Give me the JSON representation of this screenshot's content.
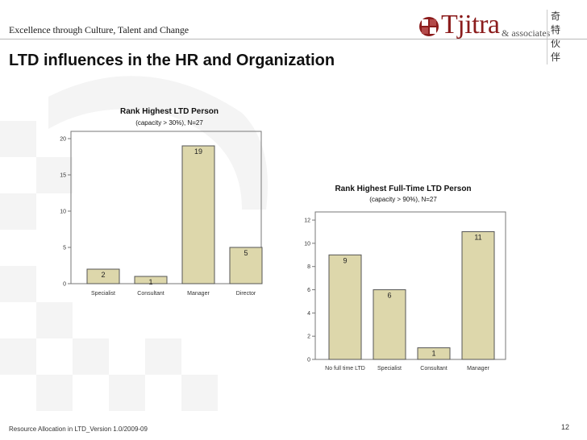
{
  "header": {
    "tagline": "Excellence through Culture, Talent and Change",
    "logo_name": "Tjitra",
    "logo_sub": "& associates",
    "logo_cjk_1": "奇 特",
    "logo_cjk_2": "伙 伴"
  },
  "page_title": "LTD influences in the HR and Organization",
  "footer": {
    "left": "Resource Allocation in LTD_Version 1.0/2009-09",
    "page_number": "12"
  },
  "colors": {
    "bar_fill": "#ddd7ab",
    "bar_stroke": "#555555",
    "brand": "#8b1c1c"
  },
  "chart_data": [
    {
      "type": "bar",
      "title": "Rank Highest LTD Person",
      "subtitle": "(capacity > 30%), N=27",
      "categories": [
        "Specialist",
        "Consultant",
        "Manager",
        "Director"
      ],
      "values": [
        2,
        1,
        19,
        5
      ],
      "data_labels": [
        "2",
        "1",
        "19",
        "5"
      ],
      "ylim": [
        0,
        21
      ],
      "yticks": [
        0,
        5,
        10,
        15,
        20
      ],
      "xlabel": "",
      "ylabel": "",
      "grid": false
    },
    {
      "type": "bar",
      "title": "Rank Highest Full-Time LTD Person",
      "subtitle": "(capacity > 90%), N=27",
      "categories": [
        "No full time LTD",
        "Specialist",
        "Consultant",
        "Manager"
      ],
      "values": [
        9,
        6,
        1,
        11
      ],
      "data_labels": [
        "9",
        "6",
        "1",
        "11"
      ],
      "ylim": [
        0,
        12.7
      ],
      "yticks": [
        0,
        2,
        4,
        6,
        8,
        10,
        12
      ],
      "xlabel": "",
      "ylabel": "",
      "grid": false
    }
  ]
}
